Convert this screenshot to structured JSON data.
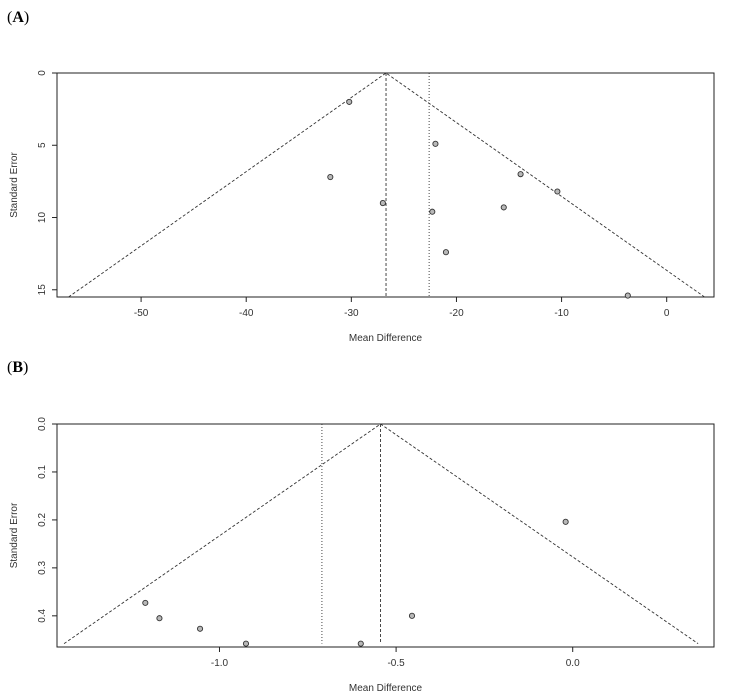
{
  "panels": [
    {
      "label_open": "(",
      "label_letter": "A",
      "label_close": ")"
    },
    {
      "label_open": "(",
      "label_letter": "B",
      "label_close": ")"
    }
  ],
  "chart_data": [
    {
      "type": "scatter",
      "subtype": "funnel-plot",
      "title": "",
      "xlabel": "Mean Difference",
      "ylabel": "Standard Error",
      "xlim": [
        -58,
        4.5
      ],
      "ylim": [
        15.5,
        0
      ],
      "y_reversed": true,
      "x_ticks": [
        -50,
        -40,
        -30,
        -20,
        -10,
        0
      ],
      "x_tick_labels": [
        "-50",
        "-40",
        "-30",
        "-20",
        "-10",
        "0"
      ],
      "y_ticks": [
        0,
        5,
        10,
        15
      ],
      "y_tick_labels": [
        "0",
        "5",
        "10",
        "15"
      ],
      "grid": false,
      "funnel": {
        "center": -26.7,
        "apex_se": 0,
        "base_se": 15.5,
        "left_x": -56.9,
        "right_x": 3.6,
        "style": "dashed"
      },
      "vertical_lines": [
        {
          "x": -26.7,
          "style": "dashed"
        },
        {
          "x": -22.6,
          "style": "dotted"
        }
      ],
      "points": [
        {
          "x": -30.2,
          "y": 2.0
        },
        {
          "x": -32.0,
          "y": 7.2
        },
        {
          "x": -27.0,
          "y": 9.0
        },
        {
          "x": -22.0,
          "y": 4.9
        },
        {
          "x": -22.3,
          "y": 9.6
        },
        {
          "x": -21.0,
          "y": 12.4
        },
        {
          "x": -15.5,
          "y": 9.3
        },
        {
          "x": -13.9,
          "y": 7.0
        },
        {
          "x": -10.4,
          "y": 8.2
        },
        {
          "x": -3.7,
          "y": 15.4
        }
      ]
    },
    {
      "type": "scatter",
      "subtype": "funnel-plot",
      "title": "",
      "xlabel": "Mean Difference",
      "ylabel": "Standard Error",
      "xlim": [
        -1.46,
        0.4
      ],
      "ylim": [
        0.465,
        0
      ],
      "y_reversed": true,
      "x_ticks": [
        -1.0,
        -0.5,
        0.0
      ],
      "x_tick_labels": [
        "-1.0",
        "-0.5",
        "0.0"
      ],
      "y_ticks": [
        0.0,
        0.1,
        0.2,
        0.3,
        0.4
      ],
      "y_tick_labels": [
        "0.0",
        "0.1",
        "0.2",
        "0.3",
        "0.4"
      ],
      "grid": false,
      "funnel": {
        "center": -0.544,
        "apex_se": 0,
        "base_se": 0.458,
        "left_x": -1.44,
        "right_x": 0.355,
        "style": "dashed"
      },
      "vertical_lines": [
        {
          "x": -0.544,
          "style": "dashed"
        },
        {
          "x": -0.71,
          "style": "dotted"
        }
      ],
      "points": [
        {
          "x": -1.21,
          "y": 0.373
        },
        {
          "x": -1.17,
          "y": 0.405
        },
        {
          "x": -1.055,
          "y": 0.427
        },
        {
          "x": -0.925,
          "y": 0.458
        },
        {
          "x": -0.6,
          "y": 0.458
        },
        {
          "x": -0.455,
          "y": 0.4
        },
        {
          "x": -0.02,
          "y": 0.204
        }
      ]
    }
  ]
}
